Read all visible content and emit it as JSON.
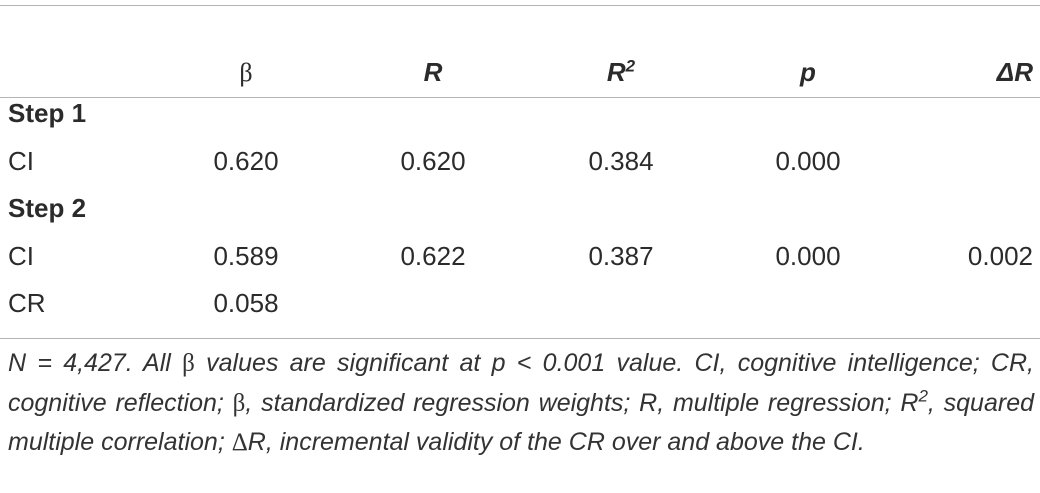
{
  "table": {
    "header": [
      {
        "text": "β"
      },
      {
        "text": "R"
      },
      {
        "text": "R",
        "sup": "2"
      },
      {
        "text": "p"
      },
      {
        "text": "ΔR"
      }
    ],
    "sections": [
      {
        "title": "Step 1",
        "rows": [
          [
            "CI",
            "0.620",
            "0.620",
            "0.384",
            "0.000"
          ]
        ]
      },
      {
        "title": "Step 2",
        "rows": [
          [
            "CI",
            "0.589",
            "0.622",
            "0.387",
            "0.000",
            "0.002"
          ],
          [
            "CR",
            "0.058"
          ]
        ]
      }
    ]
  },
  "footnote": [
    {
      "text": "N = 4,427. All "
    },
    {
      "text": "β",
      "style": "symbol"
    },
    {
      "text": " values are significant at p < 0.001 value. CI, cognitive intelligence; CR, cognitive reflection; "
    },
    {
      "text": "β",
      "style": "symbol"
    },
    {
      "text": ", standardized regression weights; R, multiple regression; R"
    },
    {
      "text": "2",
      "style": "sup"
    },
    {
      "text": ", squared multiple correlation; "
    },
    {
      "text": "Δ",
      "style": "symbol"
    },
    {
      "text": "R, incremental validity of the CR over and above the CI."
    }
  ]
}
